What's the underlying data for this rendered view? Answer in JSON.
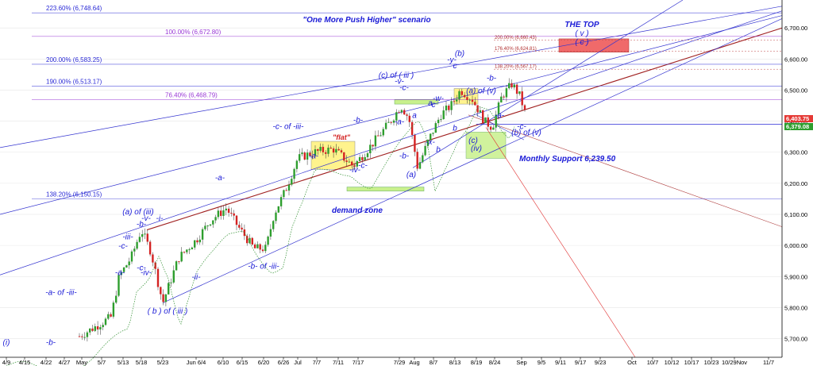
{
  "chart_data": {
    "type": "candlestick",
    "title": "\"One More Push Higher\" scenario",
    "target_label_1": "THE TOP",
    "target_label_2": "( v )",
    "target_label_3": "( c )",
    "support_label": "Monthly Support 6,239.50",
    "demand_label": "demand zone",
    "flat_label": "\"flat\"",
    "price_last_1": "6,403.75",
    "price_last_2": "6,379.08",
    "ylim": [
      5640,
      6790
    ],
    "y_ticks": [
      5700,
      5800,
      5900,
      6000,
      6100,
      6200,
      6300,
      6400,
      6500,
      6600,
      6700
    ],
    "y_tick_labels": [
      "5,700.00",
      "5,800.00",
      "5,900.00",
      "6,000.00",
      "6,100.00",
      "6,200.00",
      "6,300.00",
      "6,400.00",
      "6,500.00",
      "6,600.00",
      "6,700.00"
    ],
    "x_tick_labels": [
      "4/9",
      "4/15",
      "4/22",
      "4/27",
      "May",
      "5/7",
      "5/13",
      "5/18",
      "5/23",
      "Jun 6/4",
      "6/10",
      "6/15",
      "6/20",
      "6/26",
      "Jul",
      "7/7",
      "7/11",
      "7/17",
      "7/29",
      "Aug",
      "8/7",
      "8/13",
      "8/19",
      "8/24",
      "Sep",
      "9/5",
      "9/11",
      "9/17",
      "9/23",
      "Oct",
      "10/7",
      "10/12",
      "10/17",
      "10/23",
      "10/29Nov",
      "11/7"
    ],
    "fib_levels": [
      {
        "label": "223.60% (6,748.64)",
        "value": 6748.64,
        "color": "#2a2ad6"
      },
      {
        "label": "100.00% (6,672.80)",
        "value": 6672.8,
        "color": "#9a3ad6"
      },
      {
        "label": "200.00% (6,583.25)",
        "value": 6583.25,
        "color": "#2a2ad6"
      },
      {
        "label": "190.00% (6,513.17)",
        "value": 6513.17,
        "color": "#2a2ad6"
      },
      {
        "label": "76.40% (6,468.79)",
        "value": 6468.79,
        "color": "#9a3ad6"
      },
      {
        "label": "138.20% (6,150.15)",
        "value": 6150.15,
        "color": "#2a2ad6"
      }
    ],
    "target_levels": [
      {
        "label": "200.00% (6,660.43)",
        "value": 6660.43
      },
      {
        "label": "176.40% (6,624.81)",
        "value": 6624.81
      },
      {
        "label": "138.20% (6,567.17)",
        "value": 6567.17
      }
    ],
    "wave_labels": [
      {
        "text": "(i)",
        "x": "4/9",
        "y": 5680
      },
      {
        "text": "-b-",
        "x": "4/22",
        "y": 5680
      },
      {
        "text": "-a- of -iii-",
        "x": "4/27",
        "y": 5840
      },
      {
        "text": "-c-",
        "x": "5/13",
        "y": 5990
      },
      {
        "text": "-iii-",
        "x": "5/13",
        "y": 6020
      },
      {
        "text": "-a-",
        "x": "5/13",
        "y": 5905
      },
      {
        "text": "-b-",
        "x": "5/18",
        "y": 6060
      },
      {
        "text": "-v-",
        "x": "5/18",
        "y": 6080
      },
      {
        "text": "(a) of (iii)",
        "x": "5/18",
        "y": 6100
      },
      {
        "text": "-c-",
        "x": "5/18",
        "y": 5920
      },
      {
        "text": "-iv-",
        "x": "5/18",
        "y": 5905
      },
      {
        "text": "-i-",
        "x": "5/23",
        "y": 6080
      },
      {
        "text": "-ii-",
        "x": "Jun 6/4",
        "y": 5890
      },
      {
        "text": "( b ) of ( iii )",
        "x": "5/23",
        "y": 5780
      },
      {
        "text": "-a-",
        "x": "6/10",
        "y": 6210
      },
      {
        "text": "-b- of -iii-",
        "x": "6/20",
        "y": 5925
      },
      {
        "text": "-c- of -iii-",
        "x": "6/26",
        "y": 6375
      },
      {
        "text": "-a-",
        "x": "7/7",
        "y": 6280
      },
      {
        "text": "-b-",
        "x": "7/17",
        "y": 6395
      },
      {
        "text": "-c-",
        "x": "7/17",
        "y": 6250
      },
      {
        "text": "-iv-",
        "x": "7/17",
        "y": 6235
      },
      {
        "text": "-a-",
        "x": "7/29",
        "y": 6390
      },
      {
        "text": "-b-",
        "x": "7/29",
        "y": 6280
      },
      {
        "text": "(c) of ( iii )",
        "x": "7/29",
        "y": 6540
      },
      {
        "text": "-v-",
        "x": "7/29",
        "y": 6520
      },
      {
        "text": "-c-",
        "x": "7/29",
        "y": 6500
      },
      {
        "text": "(a)",
        "x": "Aug",
        "y": 6220
      },
      {
        "text": "a",
        "x": "Aug",
        "y": 6410
      },
      {
        "text": "b",
        "x": "8/7",
        "y": 6300
      },
      {
        "text": "-x-",
        "x": "8/7",
        "y": 6325
      },
      {
        "text": "c",
        "x": "8/7",
        "y": 6445
      },
      {
        "text": "-w-",
        "x": "8/7",
        "y": 6465
      },
      {
        "text": "a",
        "x": "8/7",
        "y": 6450
      },
      {
        "text": "b",
        "x": "8/13",
        "y": 6370
      },
      {
        "text": "(b)",
        "x": "8/13",
        "y": 6610
      },
      {
        "text": "-y-",
        "x": "8/13",
        "y": 6590
      },
      {
        "text": "c",
        "x": "8/13",
        "y": 6570
      },
      {
        "text": "(a) of (v)",
        "x": "8/19",
        "y": 6490
      },
      {
        "text": "(c)",
        "x": "8/19",
        "y": 6330
      },
      {
        "text": "(iv)",
        "x": "8/19",
        "y": 6305
      },
      {
        "text": "-a-",
        "x": "8/24",
        "y": 6410
      },
      {
        "text": "-b-",
        "x": "8/24",
        "y": 6530
      },
      {
        "text": "-c-",
        "x": "Sep",
        "y": 6375
      },
      {
        "text": "(b) of (v)",
        "x": "Sep",
        "y": 6355
      }
    ]
  }
}
